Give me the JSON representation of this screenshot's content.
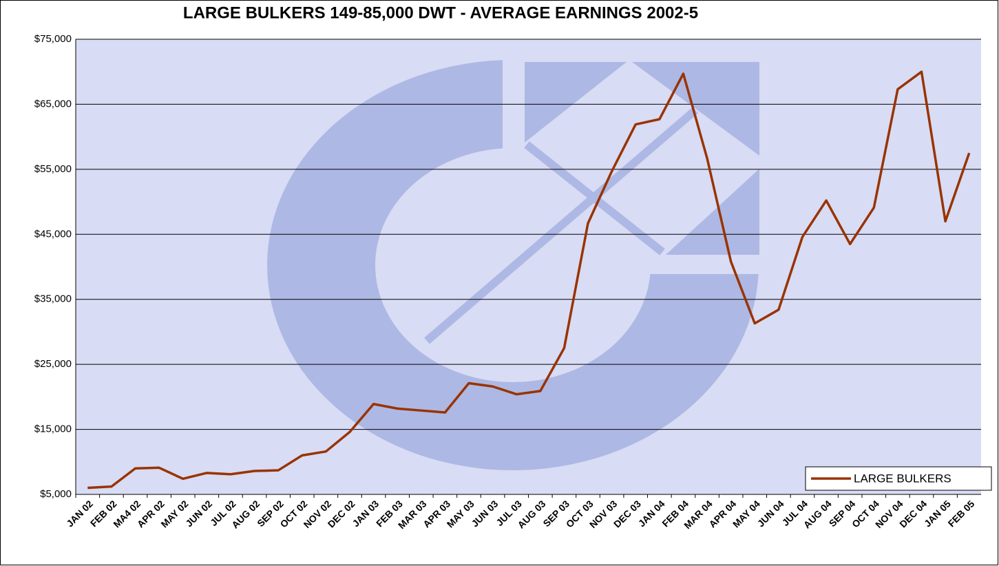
{
  "chart_data": {
    "type": "line",
    "title": "LARGE BULKERS 149-85,000 DWT -  AVERAGE EARNINGS 2002-5",
    "categories": [
      "JAN 02",
      "FEB 02",
      "MA4 02",
      "APR 02",
      "MAY 02",
      "JUN 02",
      "JUL 02",
      "AUG 02",
      "SEP 02",
      "OCT 02",
      "NOV 02",
      "DEC 02",
      "JAN 03",
      "FEB 03",
      "MAR 03",
      "APR 03",
      "MAY 03",
      "JUN 03",
      "JUL 03",
      "AUG 03",
      "SEP 03",
      "OCT 03",
      "NOV 03",
      "DEC 03",
      "JAN 04",
      "FEB 04",
      "MAR 04",
      "APR 04",
      "MAY 04",
      "JUN 04",
      "JUL 04",
      "AUG 04",
      "SEP 04",
      "OCT 04",
      "NOV 04",
      "DEC 04",
      "JAN 05",
      "FEB 05"
    ],
    "series": [
      {
        "name": "LARGE BULKERS",
        "color": "#993300",
        "values": [
          6000,
          6200,
          9000,
          9100,
          7400,
          8300,
          8100,
          8600,
          8700,
          11000,
          11600,
          14600,
          18900,
          18200,
          17900,
          17600,
          22100,
          21600,
          20400,
          20900,
          27500,
          46700,
          54700,
          61900,
          62700,
          69700,
          56700,
          40800,
          31300,
          33400,
          44600,
          50200,
          43500,
          49100,
          67300,
          70000,
          47000,
          57500
        ]
      }
    ],
    "ylim": [
      5000,
      75000
    ],
    "yticks": [
      {
        "value": 5000,
        "label": "$5,000"
      },
      {
        "value": 15000,
        "label": "$15,000"
      },
      {
        "value": 25000,
        "label": "$25,000"
      },
      {
        "value": 35000,
        "label": "$35,000"
      },
      {
        "value": 45000,
        "label": "$45,000"
      },
      {
        "value": 55000,
        "label": "$55,000"
      },
      {
        "value": 65000,
        "label": "$65,000"
      },
      {
        "value": 75000,
        "label": "$75,000"
      }
    ],
    "grid": true,
    "legend": "lower right"
  }
}
